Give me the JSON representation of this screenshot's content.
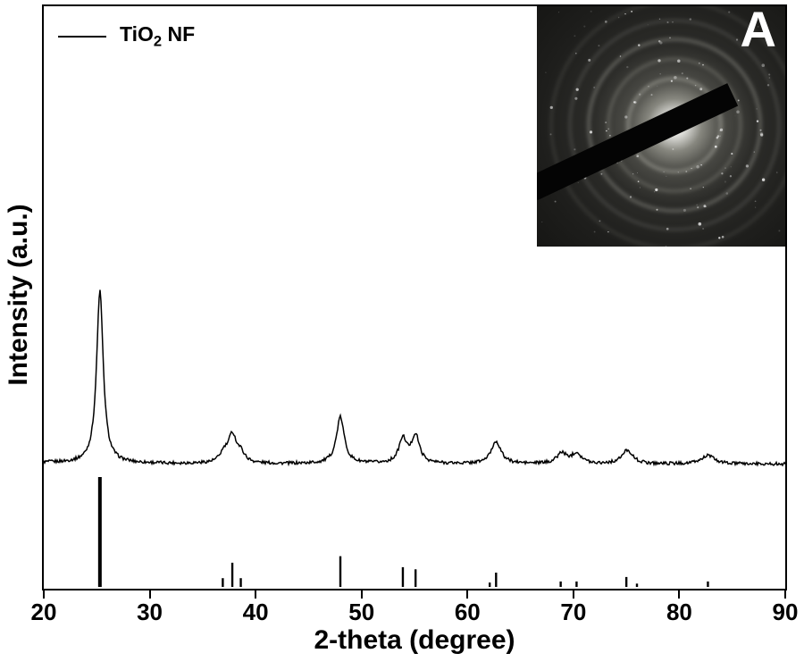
{
  "figure": {
    "legend": {
      "series_prefix": "TiO",
      "series_sub": "2",
      "series_suffix": " NF"
    },
    "inset": {
      "label": "A"
    }
  },
  "chart_data": {
    "type": "line",
    "title": "",
    "xlabel": "2-theta (degree)",
    "ylabel": "Intensity (a.u.)",
    "xlim": [
      20,
      90
    ],
    "x_ticks": [
      "20",
      "30",
      "40",
      "50",
      "60",
      "70",
      "80",
      "90"
    ],
    "y_ticks": [],
    "grid": false,
    "legend_position": "top-left",
    "legend_entries": [
      "TiO2 NF"
    ],
    "line_color": "#000000",
    "background_color": "#ffffff",
    "series": [
      {
        "name": "TiO2 NF",
        "baseline": 0.06,
        "noise_amplitude": 0.009,
        "peaks": [
          {
            "two_theta": 25.3,
            "rel_height": 1.0,
            "fwhm": 0.75
          },
          {
            "two_theta": 37.0,
            "rel_height": 0.05,
            "fwhm": 0.9
          },
          {
            "two_theta": 37.8,
            "rel_height": 0.16,
            "fwhm": 0.95
          },
          {
            "two_theta": 38.6,
            "rel_height": 0.05,
            "fwhm": 0.9
          },
          {
            "two_theta": 48.0,
            "rel_height": 0.27,
            "fwhm": 0.9
          },
          {
            "two_theta": 53.9,
            "rel_height": 0.14,
            "fwhm": 0.9
          },
          {
            "two_theta": 55.1,
            "rel_height": 0.16,
            "fwhm": 0.9
          },
          {
            "two_theta": 62.7,
            "rel_height": 0.13,
            "fwhm": 1.1
          },
          {
            "two_theta": 68.9,
            "rel_height": 0.06,
            "fwhm": 1.1
          },
          {
            "two_theta": 70.3,
            "rel_height": 0.06,
            "fwhm": 1.1
          },
          {
            "two_theta": 75.1,
            "rel_height": 0.08,
            "fwhm": 1.2
          },
          {
            "two_theta": 82.7,
            "rel_height": 0.05,
            "fwhm": 1.4
          }
        ]
      }
    ],
    "reference_sticks": [
      {
        "two_theta": 25.3,
        "rel_intensity": 100
      },
      {
        "two_theta": 36.9,
        "rel_intensity": 8
      },
      {
        "two_theta": 37.8,
        "rel_intensity": 22
      },
      {
        "two_theta": 38.6,
        "rel_intensity": 8
      },
      {
        "two_theta": 48.0,
        "rel_intensity": 28
      },
      {
        "two_theta": 53.9,
        "rel_intensity": 18
      },
      {
        "two_theta": 55.1,
        "rel_intensity": 16
      },
      {
        "two_theta": 62.1,
        "rel_intensity": 4
      },
      {
        "two_theta": 62.7,
        "rel_intensity": 13
      },
      {
        "two_theta": 68.8,
        "rel_intensity": 5
      },
      {
        "two_theta": 70.3,
        "rel_intensity": 5
      },
      {
        "two_theta": 75.0,
        "rel_intensity": 9
      },
      {
        "two_theta": 76.0,
        "rel_intensity": 3
      },
      {
        "two_theta": 82.7,
        "rel_intensity": 5
      }
    ]
  }
}
